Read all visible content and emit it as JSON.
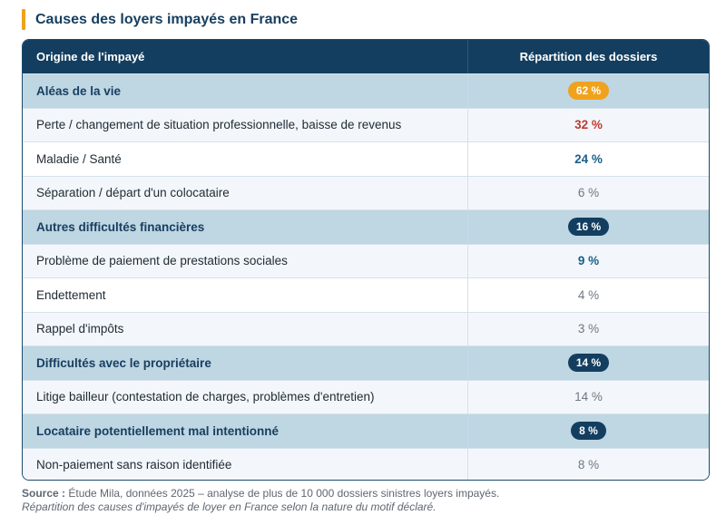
{
  "title": "Causes des loyers impayés en France",
  "table": {
    "headers": {
      "origin": "Origine de l'impayé",
      "share": "Répartition des dossiers"
    },
    "rows": [
      {
        "type": "category",
        "label": "Aléas de la vie",
        "value": "62 %",
        "style": "pill-orange"
      },
      {
        "type": "item",
        "label": "Perte / changement de situation professionnelle, baisse de revenus",
        "value": "32 %",
        "style": "red"
      },
      {
        "type": "item",
        "label": "Maladie / Santé",
        "value": "24 %",
        "style": "blue"
      },
      {
        "type": "item",
        "label": "Séparation / départ d'un colocataire",
        "value": "6 %",
        "style": "grey"
      },
      {
        "type": "category",
        "label": "Autres difficultés financières",
        "value": "16 %",
        "style": "pill-navy"
      },
      {
        "type": "item",
        "label": "Problème de paiement de prestations sociales",
        "value": "9 %",
        "style": "blue"
      },
      {
        "type": "item",
        "label": "Endettement",
        "value": "4 %",
        "style": "grey"
      },
      {
        "type": "item",
        "label": "Rappel d'impôts",
        "value": "3 %",
        "style": "grey"
      },
      {
        "type": "category",
        "label": "Difficultés avec le propriétaire",
        "value": "14 %",
        "style": "pill-navy"
      },
      {
        "type": "item",
        "label": "Litige bailleur (contestation de charges, problèmes d'entretien)",
        "value": "14 %",
        "style": "grey"
      },
      {
        "type": "category",
        "label": "Locataire potentiellement mal intentionné",
        "value": "8 %",
        "style": "pill-navy"
      },
      {
        "type": "item",
        "label": "Non-paiement sans raison identifiée",
        "value": "8 %",
        "style": "grey"
      }
    ]
  },
  "source": {
    "label": "Source :",
    "text": "Étude Mila, données 2025 – analyse de plus de 10 000 dossiers sinistres loyers impayés.",
    "note": "Répartition des causes d'impayés de loyer en France selon la nature du motif déclaré."
  },
  "colors": {
    "accent": "#f0a21c",
    "navy": "#133e5f",
    "category_bg": "#bfd6e3",
    "red": "#c0392b",
    "blue": "#1b5e87",
    "grey": "#6f7781"
  }
}
